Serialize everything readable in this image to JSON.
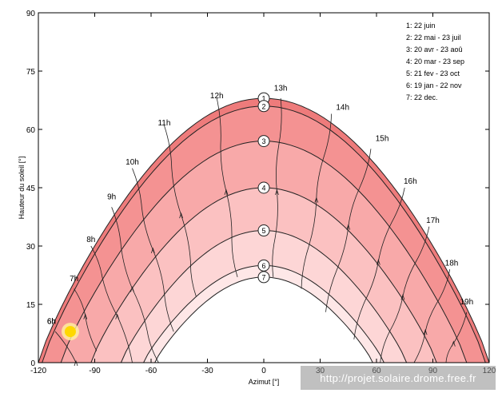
{
  "chart_data": {
    "type": "line",
    "title": "",
    "xlabel": "Azimut [°]",
    "ylabel": "Hauteur du soleil [°]",
    "xlim": [
      -120,
      120
    ],
    "ylim": [
      0,
      90
    ],
    "x_ticks": [
      "-120",
      "-90",
      "-60",
      "-30",
      "0",
      "30",
      "60",
      "90",
      "120"
    ],
    "y_ticks": [
      "0",
      "15",
      "30",
      "45",
      "60",
      "75",
      "90"
    ],
    "legend_position": "top-right",
    "legend": [
      "1: 22 juin",
      "2: 22 mai - 23 juil",
      "3: 20 avr - 23 aoû",
      "4: 20 mar - 23 sep",
      "5: 21 fev - 23 oct",
      "6: 19 jan - 22 nov",
      "7: 22 dec."
    ],
    "series": [
      {
        "name": "1",
        "peak_altitude": 68,
        "sunrise_azimuth": -120,
        "sunset_azimuth": 120,
        "color": "#ee7b7b"
      },
      {
        "name": "2",
        "peak_altitude": 66,
        "sunrise_azimuth": -118,
        "sunset_azimuth": 118,
        "color": "#f49292"
      },
      {
        "name": "3",
        "peak_altitude": 57,
        "sunrise_azimuth": -108,
        "sunset_azimuth": 108,
        "color": "#f8a9a9"
      },
      {
        "name": "4",
        "peak_altitude": 45,
        "sunrise_azimuth": -92,
        "sunset_azimuth": 92,
        "color": "#fbc1c1"
      },
      {
        "name": "5",
        "peak_altitude": 34,
        "sunrise_azimuth": -76,
        "sunset_azimuth": 76,
        "color": "#fdd6d6"
      },
      {
        "name": "6",
        "peak_altitude": 25,
        "sunrise_azimuth": -64,
        "sunset_azimuth": 64,
        "color": "#fee7e7"
      },
      {
        "name": "7",
        "peak_altitude": 22,
        "sunrise_azimuth": -58,
        "sunset_azimuth": 58,
        "color": "#ffffff"
      }
    ],
    "hour_labels": [
      {
        "label": "6h",
        "az": -113,
        "alt": 10
      },
      {
        "label": "7h",
        "az": -101,
        "alt": 21
      },
      {
        "label": "8h",
        "az": -92,
        "alt": 31
      },
      {
        "label": "9h",
        "az": -81,
        "alt": 42
      },
      {
        "label": "10h",
        "az": -70,
        "alt": 51
      },
      {
        "label": "11h",
        "az": -53,
        "alt": 61
      },
      {
        "label": "12h",
        "az": -25,
        "alt": 68
      },
      {
        "label": "13h",
        "az": 9,
        "alt": 70
      },
      {
        "label": "14h",
        "az": 42,
        "alt": 65
      },
      {
        "label": "15h",
        "az": 63,
        "alt": 57
      },
      {
        "label": "16h",
        "az": 78,
        "alt": 46
      },
      {
        "label": "17h",
        "az": 90,
        "alt": 36
      },
      {
        "label": "18h",
        "az": 100,
        "alt": 25
      },
      {
        "label": "19h",
        "az": 108,
        "alt": 15
      },
      {
        "label": "6h",
        "az": -113,
        "alt": 10
      }
    ],
    "hour_lines": [
      {
        "hour": "6h",
        "points": [
          [
            -111,
            8
          ],
          [
            -100,
            0
          ]
        ]
      },
      {
        "hour": "7h",
        "points": [
          [
            -101,
            19
          ],
          [
            -95,
            12
          ],
          [
            -89,
            3
          ]
        ]
      },
      {
        "hour": "8h",
        "points": [
          [
            -92,
            30
          ],
          [
            -86,
            22
          ],
          [
            -78,
            12
          ],
          [
            -70,
            0
          ]
        ]
      },
      {
        "hour": "9h",
        "points": [
          [
            -81,
            40
          ],
          [
            -76,
            30
          ],
          [
            -70,
            19
          ],
          [
            -62,
            8
          ],
          [
            -56,
            0
          ]
        ]
      },
      {
        "hour": "10h",
        "points": [
          [
            -70,
            50
          ],
          [
            -65,
            40
          ],
          [
            -59,
            29
          ],
          [
            -53,
            18
          ],
          [
            -48,
            8
          ]
        ]
      },
      {
        "hour": "11h",
        "points": [
          [
            -53,
            61
          ],
          [
            -49,
            50
          ],
          [
            -44,
            38
          ],
          [
            -39,
            26
          ],
          [
            -36,
            17
          ]
        ]
      },
      {
        "hour": "12h",
        "points": [
          [
            -25,
            68
          ],
          [
            -23,
            56
          ],
          [
            -20,
            44
          ],
          [
            -17,
            32
          ],
          [
            -14,
            22
          ]
        ]
      },
      {
        "hour": "13h",
        "points": [
          [
            9,
            68
          ],
          [
            8,
            56
          ],
          [
            7,
            44
          ],
          [
            6,
            32
          ],
          [
            5,
            22
          ]
        ]
      },
      {
        "hour": "14h",
        "points": [
          [
            36,
            64
          ],
          [
            32,
            53
          ],
          [
            28,
            42
          ],
          [
            24,
            30
          ],
          [
            20,
            19
          ]
        ]
      },
      {
        "hour": "15h",
        "points": [
          [
            57,
            55
          ],
          [
            51,
            45
          ],
          [
            45,
            35
          ],
          [
            39,
            24
          ],
          [
            33,
            13
          ]
        ]
      },
      {
        "hour": "16h",
        "points": [
          [
            75,
            45
          ],
          [
            68,
            36
          ],
          [
            61,
            26
          ],
          [
            54,
            16
          ],
          [
            48,
            6
          ]
        ]
      },
      {
        "hour": "17h",
        "points": [
          [
            88,
            35
          ],
          [
            81,
            26
          ],
          [
            74,
            17
          ],
          [
            67,
            8
          ],
          [
            62,
            0
          ]
        ]
      },
      {
        "hour": "18h",
        "points": [
          [
            99,
            24
          ],
          [
            93,
            16
          ],
          [
            86,
            8
          ],
          [
            80,
            0
          ]
        ]
      },
      {
        "hour": "19h",
        "points": [
          [
            108,
            13
          ],
          [
            101,
            5
          ],
          [
            97,
            0
          ]
        ]
      }
    ],
    "sun_marker": {
      "az": -103,
      "alt": 8
    }
  },
  "watermark": "http://projet.solaire.drome.free.fr"
}
